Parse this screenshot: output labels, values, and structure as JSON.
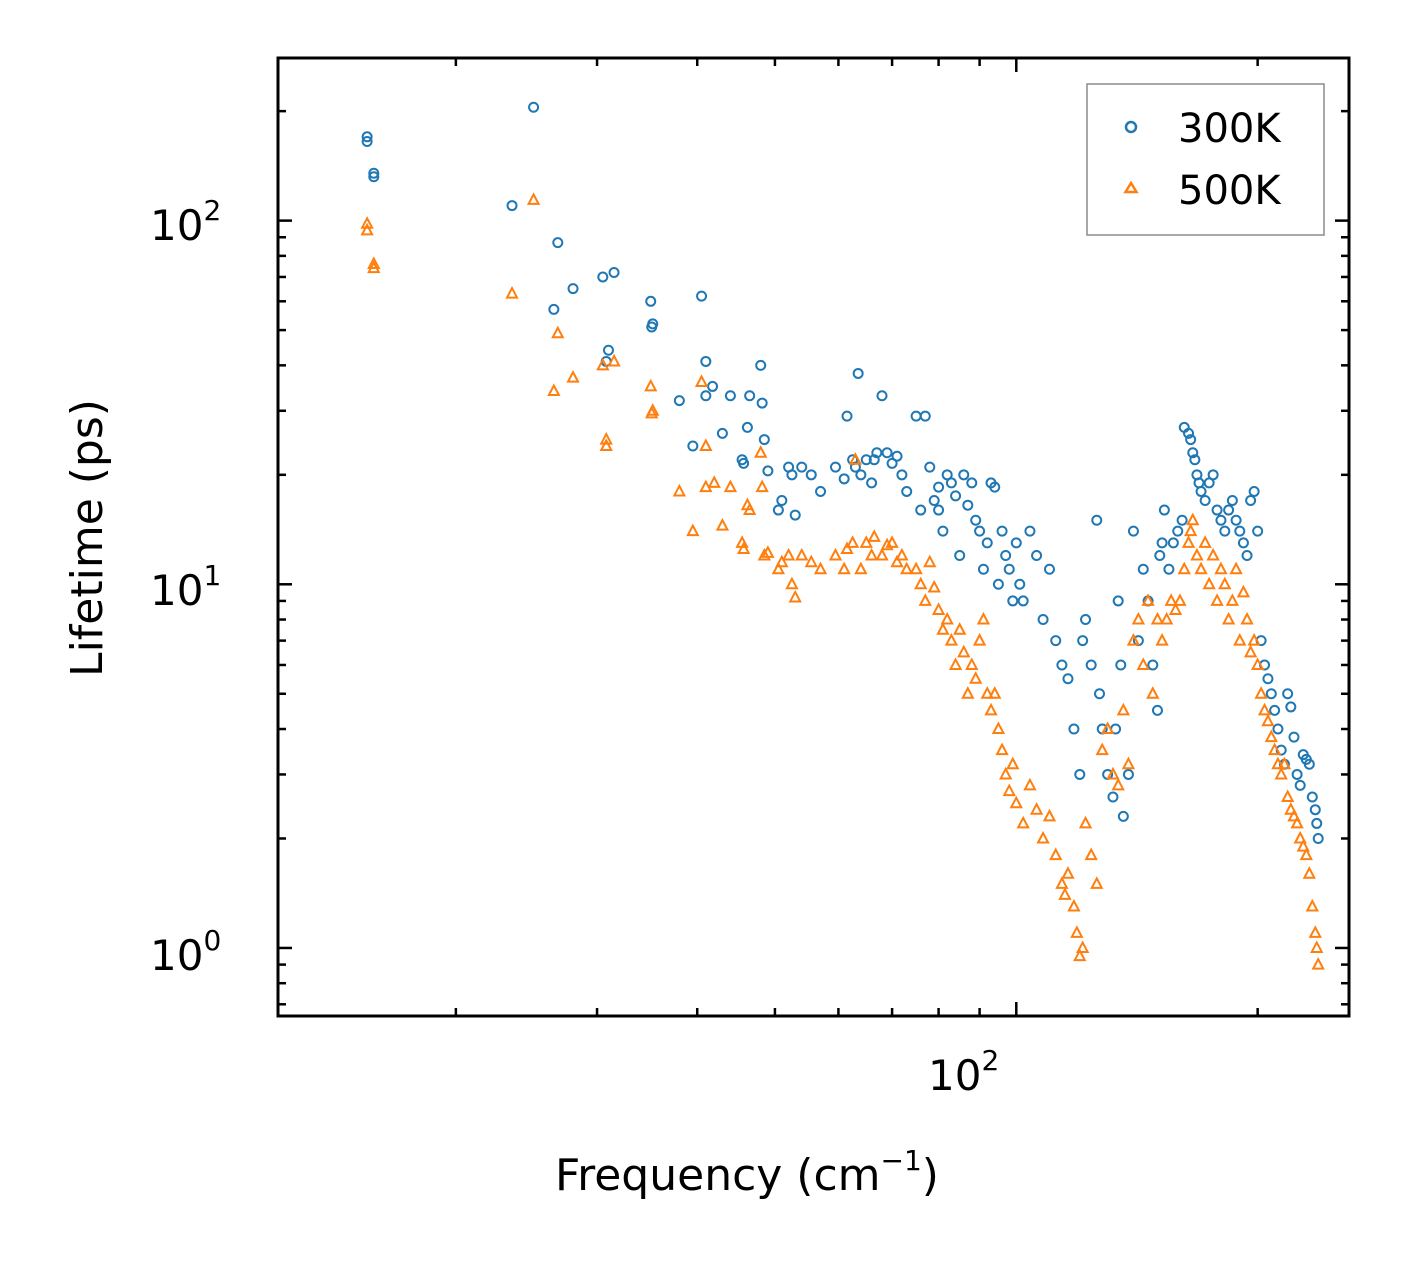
{
  "chart_data": {
    "type": "scatter",
    "x_scale": "log",
    "y_scale": "log",
    "xlabel": "Frequency (cm",
    "xlabel_sup": "−1",
    "xlabel_end": ")",
    "ylabel": "Lifetime (ps)",
    "xlim": [
      12.0,
      260.0
    ],
    "ylim": [
      0.65,
      280
    ],
    "x_tick_labels": [
      {
        "base": "10",
        "exp": "2",
        "value": 100
      }
    ],
    "y_tick_labels": [
      {
        "base": "10",
        "exp": "0",
        "value": 1
      },
      {
        "base": "10",
        "exp": "1",
        "value": 10
      },
      {
        "base": "10",
        "exp": "2",
        "value": 100
      }
    ],
    "legend_position": "top-right",
    "series": [
      {
        "name": "300K",
        "color": "#1f77b4",
        "marker": "circle",
        "points": [
          [
            15.5,
            170
          ],
          [
            15.5,
            165
          ],
          [
            15.8,
            135
          ],
          [
            15.8,
            132
          ],
          [
            23.5,
            110
          ],
          [
            25,
            205
          ],
          [
            26.8,
            87
          ],
          [
            26.5,
            57
          ],
          [
            28,
            65
          ],
          [
            30.5,
            70
          ],
          [
            31,
            44
          ],
          [
            31.5,
            72
          ],
          [
            30.8,
            41
          ],
          [
            35,
            60
          ],
          [
            35.2,
            52
          ],
          [
            35.1,
            51
          ],
          [
            38,
            32
          ],
          [
            39.5,
            24
          ],
          [
            40.5,
            62
          ],
          [
            41,
            41
          ],
          [
            41,
            33
          ],
          [
            41.8,
            35
          ],
          [
            43,
            26
          ],
          [
            44,
            33
          ],
          [
            45.5,
            22
          ],
          [
            45.7,
            21.5
          ],
          [
            46.5,
            33
          ],
          [
            46.2,
            27
          ],
          [
            48,
            40
          ],
          [
            48.2,
            31.5
          ],
          [
            48.5,
            25
          ],
          [
            49,
            20.5
          ],
          [
            50.5,
            16
          ],
          [
            51,
            17
          ],
          [
            52,
            21
          ],
          [
            52.5,
            20
          ],
          [
            53,
            15.5
          ],
          [
            54,
            21
          ],
          [
            55.5,
            20
          ],
          [
            57,
            18
          ],
          [
            59.5,
            21
          ],
          [
            61,
            19.5
          ],
          [
            61.5,
            29
          ],
          [
            62.5,
            22
          ],
          [
            63,
            21
          ],
          [
            63.5,
            38
          ],
          [
            64,
            20
          ],
          [
            65,
            22
          ],
          [
            66,
            19
          ],
          [
            66.5,
            22
          ],
          [
            68,
            33
          ],
          [
            67,
            23
          ],
          [
            69,
            23
          ],
          [
            70,
            21.5
          ],
          [
            71,
            22.5
          ],
          [
            72,
            20
          ],
          [
            73,
            18
          ],
          [
            75,
            29
          ],
          [
            76,
            16
          ],
          [
            77,
            29
          ],
          [
            78,
            21
          ],
          [
            79,
            17
          ],
          [
            80,
            18.5
          ],
          [
            80,
            16
          ],
          [
            81,
            14
          ],
          [
            82,
            20
          ],
          [
            83,
            19
          ],
          [
            84,
            17.5
          ],
          [
            85,
            12
          ],
          [
            86,
            20
          ],
          [
            87,
            16.5
          ],
          [
            88,
            19
          ],
          [
            89,
            15
          ],
          [
            90,
            14
          ],
          [
            91,
            11
          ],
          [
            92,
            13
          ],
          [
            93,
            19
          ],
          [
            94,
            18.5
          ],
          [
            95,
            10
          ],
          [
            96,
            14
          ],
          [
            97,
            12
          ],
          [
            98,
            11
          ],
          [
            99,
            9
          ],
          [
            100,
            13
          ],
          [
            101,
            10
          ],
          [
            102,
            9
          ],
          [
            104,
            14
          ],
          [
            106,
            12
          ],
          [
            108,
            8
          ],
          [
            110,
            11
          ],
          [
            112,
            7
          ],
          [
            114,
            6
          ],
          [
            116,
            5.5
          ],
          [
            118,
            4
          ],
          [
            120,
            3
          ],
          [
            121,
            7
          ],
          [
            122,
            8
          ],
          [
            124,
            6
          ],
          [
            126,
            15
          ],
          [
            127,
            5
          ],
          [
            128,
            4
          ],
          [
            130,
            3
          ],
          [
            132,
            2.6
          ],
          [
            133,
            4
          ],
          [
            134,
            9
          ],
          [
            135,
            6
          ],
          [
            136,
            2.3
          ],
          [
            138,
            3
          ],
          [
            140,
            14
          ],
          [
            142,
            7
          ],
          [
            144,
            11
          ],
          [
            146,
            9
          ],
          [
            148,
            6
          ],
          [
            150,
            4.5
          ],
          [
            151,
            12
          ],
          [
            152,
            13
          ],
          [
            153,
            16
          ],
          [
            155,
            11
          ],
          [
            157,
            13
          ],
          [
            159,
            14
          ],
          [
            161,
            15
          ],
          [
            162,
            27
          ],
          [
            164,
            26
          ],
          [
            165,
            25
          ],
          [
            166,
            23
          ],
          [
            167,
            22
          ],
          [
            168,
            20
          ],
          [
            169,
            19
          ],
          [
            170,
            18
          ],
          [
            172,
            17
          ],
          [
            174,
            19
          ],
          [
            176,
            20
          ],
          [
            178,
            16
          ],
          [
            180,
            15
          ],
          [
            182,
            14
          ],
          [
            184,
            16
          ],
          [
            186,
            17
          ],
          [
            188,
            15
          ],
          [
            190,
            14
          ],
          [
            192,
            13
          ],
          [
            194,
            12
          ],
          [
            196,
            17
          ],
          [
            198,
            18
          ],
          [
            200,
            14
          ],
          [
            202,
            7
          ],
          [
            204,
            6
          ],
          [
            206,
            5.5
          ],
          [
            208,
            5
          ],
          [
            210,
            4.5
          ],
          [
            212,
            4
          ],
          [
            214,
            3.5
          ],
          [
            216,
            3.2
          ],
          [
            218,
            5
          ],
          [
            220,
            4.6
          ],
          [
            222,
            3.8
          ],
          [
            224,
            3
          ],
          [
            226,
            2.8
          ],
          [
            228,
            3.4
          ],
          [
            230,
            3.3
          ],
          [
            232,
            3.2
          ],
          [
            234,
            2.6
          ],
          [
            236,
            2.4
          ],
          [
            237,
            2.2
          ],
          [
            238,
            2.0
          ]
        ]
      },
      {
        "name": "500K",
        "color": "#ff7f0e",
        "marker": "triangle",
        "points": [
          [
            15.5,
            98
          ],
          [
            15.5,
            94
          ],
          [
            15.8,
            76
          ],
          [
            15.8,
            74
          ],
          [
            23.5,
            63
          ],
          [
            25,
            114
          ],
          [
            26.5,
            34
          ],
          [
            26.8,
            49
          ],
          [
            28,
            37
          ],
          [
            30.5,
            40
          ],
          [
            30.8,
            25
          ],
          [
            30.8,
            24
          ],
          [
            31.5,
            41
          ],
          [
            35,
            35
          ],
          [
            35.2,
            30
          ],
          [
            35.1,
            29.5
          ],
          [
            38,
            18
          ],
          [
            39.5,
            14
          ],
          [
            40.5,
            36
          ],
          [
            41,
            24
          ],
          [
            41,
            18.5
          ],
          [
            42,
            19
          ],
          [
            43,
            14.5
          ],
          [
            44,
            18.5
          ],
          [
            45.5,
            13
          ],
          [
            45.7,
            12.5
          ],
          [
            46.5,
            16
          ],
          [
            46.2,
            16.5
          ],
          [
            48,
            23
          ],
          [
            48.2,
            18.5
          ],
          [
            48.5,
            12
          ],
          [
            49,
            12.2
          ],
          [
            50.5,
            11
          ],
          [
            51,
            11.5
          ],
          [
            52,
            12
          ],
          [
            52.5,
            10
          ],
          [
            53,
            9.2
          ],
          [
            54,
            12
          ],
          [
            55.5,
            11.5
          ],
          [
            57,
            11
          ],
          [
            59.5,
            12
          ],
          [
            61,
            11
          ],
          [
            61.5,
            12.5
          ],
          [
            62.5,
            13
          ],
          [
            63,
            22
          ],
          [
            64,
            11
          ],
          [
            65,
            13
          ],
          [
            66,
            12
          ],
          [
            66.5,
            13.5
          ],
          [
            68,
            12
          ],
          [
            69,
            12.8
          ],
          [
            70,
            13
          ],
          [
            71,
            11.5
          ],
          [
            72,
            12
          ],
          [
            73,
            11
          ],
          [
            75,
            11
          ],
          [
            76,
            10
          ],
          [
            77,
            9
          ],
          [
            78,
            11.5
          ],
          [
            79,
            9.8
          ],
          [
            80,
            8.5
          ],
          [
            81,
            7.5
          ],
          [
            82,
            8
          ],
          [
            83,
            7
          ],
          [
            84,
            6
          ],
          [
            85,
            7.5
          ],
          [
            86,
            6.5
          ],
          [
            87,
            5
          ],
          [
            88,
            6
          ],
          [
            89,
            5.5
          ],
          [
            90,
            7
          ],
          [
            91,
            8
          ],
          [
            92,
            5
          ],
          [
            93,
            4.5
          ],
          [
            94,
            5
          ],
          [
            95,
            4
          ],
          [
            96,
            3.5
          ],
          [
            97,
            3
          ],
          [
            98,
            2.7
          ],
          [
            99,
            3.2
          ],
          [
            100,
            2.5
          ],
          [
            102,
            2.2
          ],
          [
            104,
            2.8
          ],
          [
            106,
            2.4
          ],
          [
            108,
            2.0
          ],
          [
            110,
            2.3
          ],
          [
            112,
            1.8
          ],
          [
            114,
            1.5
          ],
          [
            115,
            1.4
          ],
          [
            116,
            1.6
          ],
          [
            118,
            1.3
          ],
          [
            119,
            1.1
          ],
          [
            120,
            0.95
          ],
          [
            121,
            1.0
          ],
          [
            122,
            2.2
          ],
          [
            124,
            1.8
          ],
          [
            126,
            1.5
          ],
          [
            128,
            3.5
          ],
          [
            130,
            4
          ],
          [
            132,
            3
          ],
          [
            134,
            2.8
          ],
          [
            136,
            4.5
          ],
          [
            138,
            3.2
          ],
          [
            140,
            7
          ],
          [
            142,
            8
          ],
          [
            144,
            6
          ],
          [
            146,
            9
          ],
          [
            148,
            5
          ],
          [
            150,
            8
          ],
          [
            152,
            7
          ],
          [
            154,
            8
          ],
          [
            156,
            9
          ],
          [
            158,
            8.5
          ],
          [
            160,
            9
          ],
          [
            162,
            11
          ],
          [
            164,
            13
          ],
          [
            165,
            14
          ],
          [
            166,
            15
          ],
          [
            168,
            12
          ],
          [
            170,
            11
          ],
          [
            172,
            13
          ],
          [
            174,
            10
          ],
          [
            176,
            12
          ],
          [
            178,
            9
          ],
          [
            180,
            11
          ],
          [
            182,
            10
          ],
          [
            184,
            8
          ],
          [
            186,
            9
          ],
          [
            188,
            11
          ],
          [
            190,
            7
          ],
          [
            192,
            9.5
          ],
          [
            194,
            8
          ],
          [
            196,
            6.5
          ],
          [
            198,
            7
          ],
          [
            200,
            6
          ],
          [
            202,
            5
          ],
          [
            204,
            4.5
          ],
          [
            206,
            4.2
          ],
          [
            208,
            3.8
          ],
          [
            210,
            3.5
          ],
          [
            212,
            3.2
          ],
          [
            214,
            3.0
          ],
          [
            216,
            3.2
          ],
          [
            218,
            2.6
          ],
          [
            220,
            2.4
          ],
          [
            222,
            2.3
          ],
          [
            224,
            2.2
          ],
          [
            226,
            2.0
          ],
          [
            228,
            1.9
          ],
          [
            230,
            1.8
          ],
          [
            232,
            1.6
          ],
          [
            234,
            1.3
          ],
          [
            236,
            1.1
          ],
          [
            237,
            1.0
          ],
          [
            238,
            0.9
          ]
        ]
      }
    ]
  }
}
